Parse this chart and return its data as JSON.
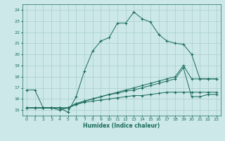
{
  "xlabel": "Humidex (Indice chaleur)",
  "xlim": [
    -0.5,
    23.5
  ],
  "ylim": [
    14.5,
    24.5
  ],
  "yticks": [
    15,
    16,
    17,
    18,
    19,
    20,
    21,
    22,
    23,
    24
  ],
  "xticks": [
    0,
    1,
    2,
    3,
    4,
    5,
    6,
    7,
    8,
    9,
    10,
    11,
    12,
    13,
    14,
    15,
    16,
    17,
    18,
    19,
    20,
    21,
    22,
    23
  ],
  "bg_color": "#cce8e8",
  "line_color": "#1a6b5a",
  "grid_color": "#aacece",
  "line1": [
    16.8,
    16.8,
    15.2,
    15.2,
    15.2,
    14.8,
    16.2,
    18.5,
    20.3,
    21.2,
    21.5,
    22.8,
    22.8,
    23.8,
    23.2,
    22.9,
    21.8,
    21.2,
    21.0,
    20.9,
    20.0,
    17.8,
    17.8,
    17.8
  ],
  "line2": [
    15.2,
    15.2,
    15.2,
    15.2,
    15.2,
    15.2,
    15.5,
    15.8,
    16.0,
    16.2,
    16.4,
    16.5,
    16.7,
    16.8,
    17.0,
    17.2,
    17.4,
    17.6,
    17.8,
    18.8,
    16.2,
    16.2,
    16.4,
    16.4
  ],
  "line3": [
    15.2,
    15.2,
    15.2,
    15.2,
    15.0,
    15.2,
    15.5,
    15.7,
    15.8,
    15.9,
    16.0,
    16.1,
    16.2,
    16.3,
    16.3,
    16.4,
    16.5,
    16.6,
    16.6,
    16.6,
    16.6,
    16.6,
    16.6,
    16.6
  ],
  "line4": [
    15.2,
    15.2,
    15.2,
    15.2,
    15.2,
    15.2,
    15.6,
    15.8,
    16.0,
    16.2,
    16.4,
    16.6,
    16.8,
    17.0,
    17.2,
    17.4,
    17.6,
    17.8,
    18.0,
    19.0,
    17.8,
    17.8,
    17.8,
    17.8
  ]
}
